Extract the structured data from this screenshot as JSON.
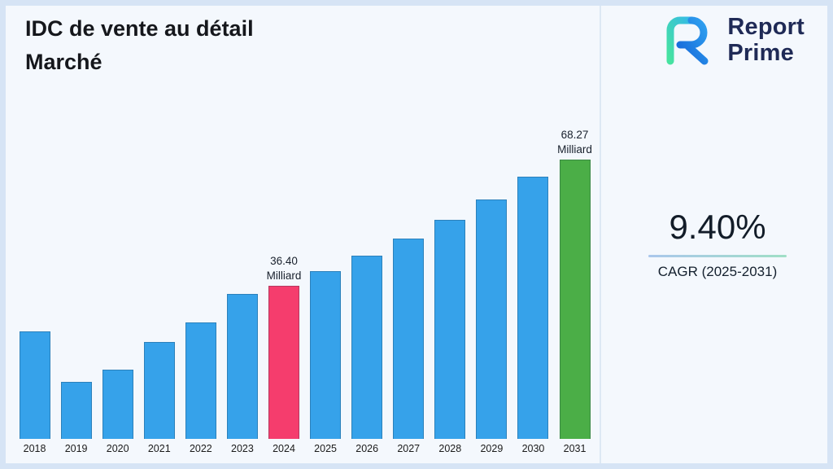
{
  "header": {
    "title": "IDC de vente au détail Marché"
  },
  "logo": {
    "line1": "Report",
    "line2": "Prime"
  },
  "cagr": {
    "value": "9.40%",
    "label": "CAGR (2025-2031)"
  },
  "colors": {
    "background": "#f4f8fd",
    "frame_border": "#d6e4f5",
    "bar_default": "#36A2EA",
    "bar_2024": "#F53D6D",
    "bar_2031": "#4BAE47",
    "logo_navy": "#1f2a56"
  },
  "chart_data": {
    "type": "bar",
    "title": "IDC de vente au détail Marché",
    "categories": [
      "2018",
      "2019",
      "2020",
      "2021",
      "2022",
      "2023",
      "2024",
      "2025",
      "2026",
      "2027",
      "2028",
      "2029",
      "2030",
      "2031"
    ],
    "values": [
      25.6,
      13.5,
      16.5,
      23.0,
      27.7,
      34.5,
      36.4,
      39.83,
      43.57,
      47.67,
      52.15,
      57.05,
      62.41,
      68.27
    ],
    "unit": "Milliard",
    "xlabel": "",
    "ylabel": "",
    "ylim": [
      0,
      74
    ],
    "grid": false,
    "legend": false,
    "bar_color": "#36A2EA",
    "highlight_colors": {
      "2024": "#F53D6D",
      "2031": "#4BAE47"
    },
    "annotations": [
      {
        "year": "2024",
        "value": "36.40",
        "unit": "Milliard"
      },
      {
        "year": "2031",
        "value": "68.27",
        "unit": "Milliard"
      }
    ]
  }
}
